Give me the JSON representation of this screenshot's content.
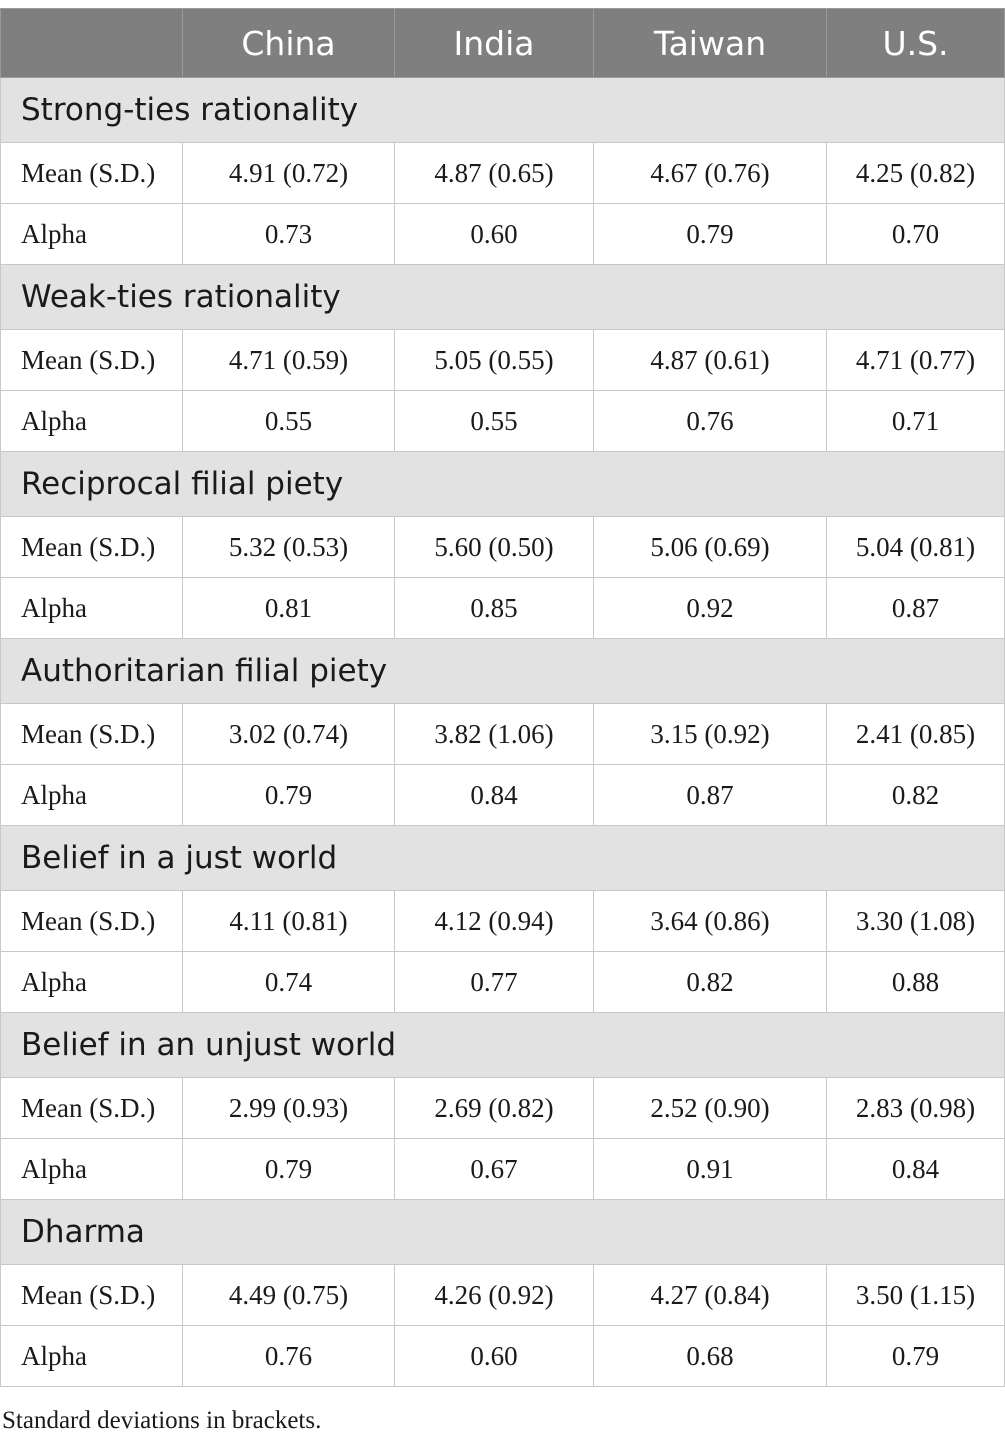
{
  "table": {
    "columns": [
      "",
      "China",
      "India",
      "Taiwan",
      "U.S."
    ],
    "sections": [
      {
        "title": "Strong-ties rationality",
        "rows": [
          {
            "label": "Mean (S.D.)",
            "values": [
              "4.91 (0.72)",
              "4.87 (0.65)",
              "4.67 (0.76)",
              "4.25 (0.82)"
            ]
          },
          {
            "label": "Alpha",
            "values": [
              "0.73",
              "0.60",
              "0.79",
              "0.70"
            ]
          }
        ]
      },
      {
        "title": "Weak-ties rationality",
        "rows": [
          {
            "label": "Mean (S.D.)",
            "values": [
              "4.71 (0.59)",
              "5.05 (0.55)",
              "4.87 (0.61)",
              "4.71 (0.77)"
            ]
          },
          {
            "label": "Alpha",
            "values": [
              "0.55",
              "0.55",
              "0.76",
              "0.71"
            ]
          }
        ]
      },
      {
        "title": "Reciprocal filial piety",
        "rows": [
          {
            "label": "Mean (S.D.)",
            "values": [
              "5.32 (0.53)",
              "5.60 (0.50)",
              "5.06 (0.69)",
              "5.04 (0.81)"
            ]
          },
          {
            "label": "Alpha",
            "values": [
              "0.81",
              "0.85",
              "0.92",
              "0.87"
            ]
          }
        ]
      },
      {
        "title": "Authoritarian filial piety",
        "rows": [
          {
            "label": "Mean (S.D.)",
            "values": [
              "3.02 (0.74)",
              "3.82 (1.06)",
              "3.15 (0.92)",
              "2.41 (0.85)"
            ]
          },
          {
            "label": "Alpha",
            "values": [
              "0.79",
              "0.84",
              "0.87",
              "0.82"
            ]
          }
        ]
      },
      {
        "title": "Belief in a just world",
        "rows": [
          {
            "label": "Mean (S.D.)",
            "values": [
              "4.11 (0.81)",
              "4.12 (0.94)",
              "3.64 (0.86)",
              "3.30 (1.08)"
            ]
          },
          {
            "label": "Alpha",
            "values": [
              "0.74",
              "0.77",
              "0.82",
              "0.88"
            ]
          }
        ]
      },
      {
        "title": "Belief in an unjust world",
        "rows": [
          {
            "label": "Mean (S.D.)",
            "values": [
              "2.99 (0.93)",
              "2.69 (0.82)",
              "2.52 (0.90)",
              "2.83 (0.98)"
            ]
          },
          {
            "label": "Alpha",
            "values": [
              "0.79",
              "0.67",
              "0.91",
              "0.84"
            ]
          }
        ]
      },
      {
        "title": "Dharma",
        "rows": [
          {
            "label": "Mean (S.D.)",
            "values": [
              "4.49 (0.75)",
              "4.26 (0.92)",
              "4.27 (0.84)",
              "3.50 (1.15)"
            ]
          },
          {
            "label": "Alpha",
            "values": [
              "0.76",
              "0.60",
              "0.68",
              "0.79"
            ]
          }
        ]
      }
    ]
  },
  "footnote": "Standard deviations in brackets.",
  "colors": {
    "header_bg": "#7f7f7f",
    "section_bg": "#e2e2e3",
    "border": "#c8c8c8"
  }
}
